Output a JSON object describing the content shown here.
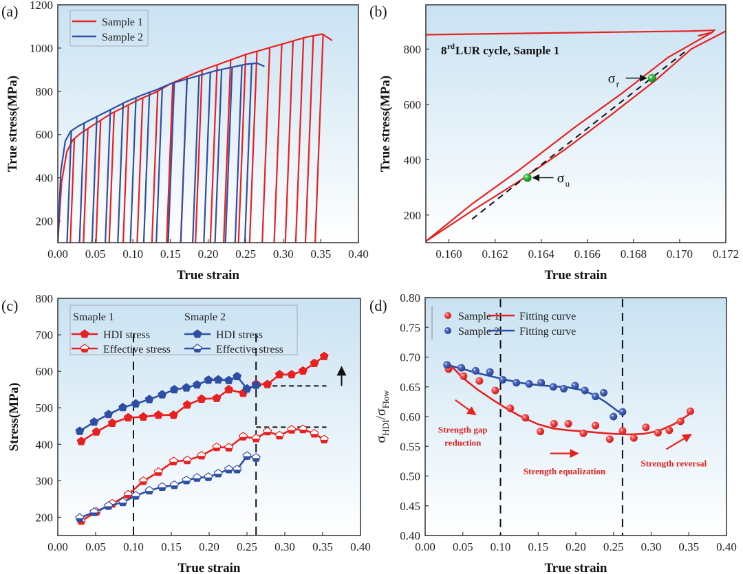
{
  "figure": {
    "colors": {
      "red": "#e8201f",
      "blue": "#2e4ea3",
      "green": "#1f9a2a",
      "bg_top": "#cfe4f2",
      "bg_bottom": "#ffffff",
      "black": "#111111"
    }
  },
  "chart_data": [
    {
      "id": "a",
      "panel_label": "(a)",
      "type": "line",
      "title": "",
      "xlabel": "True strain",
      "ylabel": "True stress(MPa)",
      "xlim": [
        0.0,
        0.4
      ],
      "ylim": [
        100,
        1200
      ],
      "xticks": [
        0.0,
        0.05,
        0.1,
        0.15,
        0.2,
        0.25,
        0.3,
        0.35,
        0.4
      ],
      "xtick_labels": [
        "0.00",
        "0.05",
        "0.10",
        "0.15",
        "0.20",
        "0.25",
        "0.30",
        "0.35",
        "0.40"
      ],
      "yticks": [
        200,
        400,
        600,
        800,
        1000,
        1200
      ],
      "ytick_labels": [
        "200",
        "400",
        "600",
        "800",
        "1000",
        "1200"
      ],
      "legend": {
        "position": "top-left",
        "entries": [
          "Sample 1",
          "Sample 2"
        ]
      },
      "series": [
        {
          "name": "Sample 1",
          "color": "red",
          "envelope": [
            [
              0.0,
              100
            ],
            [
              0.005,
              380
            ],
            [
              0.012,
              520
            ],
            [
              0.02,
              575
            ],
            [
              0.03,
              605
            ],
            [
              0.05,
              650
            ],
            [
              0.07,
              695
            ],
            [
              0.09,
              730
            ],
            [
              0.11,
              765
            ],
            [
              0.13,
              795
            ],
            [
              0.15,
              835
            ],
            [
              0.17,
              865
            ],
            [
              0.19,
              895
            ],
            [
              0.21,
              920
            ],
            [
              0.23,
              945
            ],
            [
              0.25,
              970
            ],
            [
              0.27,
              990
            ],
            [
              0.29,
              1010
            ],
            [
              0.31,
              1030
            ],
            [
              0.33,
              1050
            ],
            [
              0.352,
              1065
            ],
            [
              0.365,
              1035
            ]
          ],
          "unload_strains": [
            0.022,
            0.04,
            0.057,
            0.075,
            0.094,
            0.113,
            0.133,
            0.153,
            0.172,
            0.192,
            0.212,
            0.23,
            0.25,
            0.265,
            0.282,
            0.298,
            0.313,
            0.327,
            0.34,
            0.353
          ],
          "unload_modulus_strain": 0.011
        },
        {
          "name": "Sample 2",
          "color": "blue",
          "envelope": [
            [
              0.0,
              100
            ],
            [
              0.004,
              430
            ],
            [
              0.01,
              570
            ],
            [
              0.017,
              615
            ],
            [
              0.028,
              640
            ],
            [
              0.05,
              680
            ],
            [
              0.07,
              715
            ],
            [
              0.09,
              750
            ],
            [
              0.11,
              780
            ],
            [
              0.13,
              805
            ],
            [
              0.15,
              835
            ],
            [
              0.17,
              855
            ],
            [
              0.19,
              875
            ],
            [
              0.21,
              895
            ],
            [
              0.23,
              910
            ],
            [
              0.25,
              925
            ],
            [
              0.265,
              930
            ],
            [
              0.275,
              915
            ]
          ],
          "unload_strains": [
            0.018,
            0.035,
            0.052,
            0.07,
            0.087,
            0.104,
            0.122,
            0.139,
            0.155,
            0.172,
            0.188,
            0.203,
            0.218,
            0.232,
            0.245,
            0.258
          ],
          "unload_modulus_strain": 0.011
        }
      ]
    },
    {
      "id": "b",
      "panel_label": "(b)",
      "type": "line",
      "title": "",
      "annotation": {
        "prefix": "8",
        "superscript": "rd",
        "text": " LUR cycle, Sample 1"
      },
      "xlabel": "True strain",
      "ylabel": "True stress(MPa)",
      "xlim": [
        0.159,
        0.172
      ],
      "ylim": [
        100,
        960
      ],
      "xticks": [
        0.16,
        0.162,
        0.164,
        0.166,
        0.168,
        0.17,
        0.172
      ],
      "xtick_labels": [
        "0.160",
        "0.162",
        "0.164",
        "0.166",
        "0.168",
        "0.170",
        "0.172"
      ],
      "yticks": [
        200,
        400,
        600,
        800
      ],
      "ytick_labels": [
        "200",
        "400",
        "600",
        "800"
      ],
      "series": [
        {
          "name": "top-branch",
          "color": "red",
          "points": [
            [
              0.159,
              852
            ],
            [
              0.1705,
              865
            ],
            [
              0.1715,
              868
            ],
            [
              0.1714,
              860
            ],
            [
              0.1708,
              848
            ]
          ]
        },
        {
          "name": "unloading",
          "color": "red",
          "points": [
            [
              0.1714,
              860
            ],
            [
              0.1695,
              770
            ],
            [
              0.1675,
              640
            ],
            [
              0.1655,
              520
            ],
            [
              0.163,
              360
            ],
            [
              0.161,
              240
            ],
            [
              0.159,
              105
            ]
          ]
        },
        {
          "name": "reloading",
          "color": "red",
          "points": [
            [
              0.159,
              105
            ],
            [
              0.161,
              215
            ],
            [
              0.163,
              320
            ],
            [
              0.165,
              435
            ],
            [
              0.167,
              560
            ],
            [
              0.169,
              690
            ],
            [
              0.1705,
              800
            ],
            [
              0.172,
              865
            ]
          ]
        },
        {
          "name": "linear-fit",
          "color": "black",
          "dashed": true,
          "points": [
            [
              0.161,
              185
            ],
            [
              0.1703,
              795
            ]
          ]
        }
      ],
      "markers": [
        {
          "label": "σ",
          "sub": "r",
          "x": 0.1688,
          "y": 695,
          "arrow_from": "left"
        },
        {
          "label": "σ",
          "sub": "u",
          "x": 0.1634,
          "y": 335,
          "arrow_from": "right"
        }
      ]
    },
    {
      "id": "c",
      "panel_label": "(c)",
      "type": "line",
      "title": "",
      "xlabel": "True strain",
      "ylabel": "Stress(MPa)",
      "xlim": [
        0.0,
        0.4
      ],
      "ylim": [
        150,
        800
      ],
      "xticks": [
        0.0,
        0.05,
        0.1,
        0.15,
        0.2,
        0.25,
        0.3,
        0.35,
        0.4
      ],
      "xtick_labels": [
        "0.00",
        "0.05",
        "0.10",
        "0.15",
        "0.20",
        "0.25",
        "0.30",
        "0.35",
        "0.40"
      ],
      "yticks": [
        200,
        300,
        400,
        500,
        600,
        700,
        800
      ],
      "ytick_labels": [
        "200",
        "300",
        "400",
        "500",
        "600",
        "700",
        "800"
      ],
      "legend": {
        "position": "top-left",
        "group1": "Smaple 1",
        "group2": "Smaple 2",
        "entries": [
          "HDI stress",
          "Effective stress",
          "HDI stress",
          "Effective stress"
        ]
      },
      "vlines": [
        0.1,
        0.262
      ],
      "hlines": [
        {
          "y": 560,
          "x0": 0.262,
          "x1": 0.355
        },
        {
          "y": 447,
          "x0": 0.262,
          "x1": 0.355
        }
      ],
      "up_arrow": {
        "x": 0.375,
        "y0": 560,
        "y1": 612
      },
      "series": [
        {
          "name": "Sample 1 HDI stress",
          "color": "red",
          "marker": "filled",
          "x": [
            0.031,
            0.051,
            0.072,
            0.093,
            0.113,
            0.133,
            0.153,
            0.171,
            0.19,
            0.21,
            0.226,
            0.245,
            0.262,
            0.277,
            0.293,
            0.309,
            0.324,
            0.339,
            0.352
          ],
          "y": [
            408,
            434,
            458,
            473,
            475,
            480,
            480,
            508,
            524,
            526,
            550,
            540,
            565,
            564,
            591,
            591,
            601,
            622,
            641
          ]
        },
        {
          "name": "Sample 1 Effective stress",
          "color": "red",
          "marker": "half",
          "x": [
            0.031,
            0.051,
            0.072,
            0.093,
            0.113,
            0.133,
            0.153,
            0.171,
            0.19,
            0.21,
            0.226,
            0.245,
            0.262,
            0.277,
            0.293,
            0.309,
            0.324,
            0.339,
            0.352
          ],
          "y": [
            190,
            215,
            237,
            262,
            299,
            324,
            353,
            356,
            369,
            392,
            391,
            421,
            416,
            435,
            424,
            440,
            441,
            429,
            413
          ]
        },
        {
          "name": "Sample 2 HDI stress",
          "color": "blue",
          "marker": "filled",
          "x": [
            0.029,
            0.048,
            0.067,
            0.086,
            0.103,
            0.121,
            0.138,
            0.154,
            0.17,
            0.184,
            0.199,
            0.212,
            0.226,
            0.237,
            0.25,
            0.262
          ],
          "y": [
            436,
            461,
            482,
            501,
            511,
            523,
            536,
            550,
            555,
            563,
            576,
            577,
            575,
            586,
            552,
            562
          ]
        },
        {
          "name": "Sample 2 Effective stress",
          "color": "blue",
          "marker": "half",
          "x": [
            0.029,
            0.048,
            0.067,
            0.086,
            0.103,
            0.121,
            0.138,
            0.154,
            0.17,
            0.184,
            0.199,
            0.212,
            0.226,
            0.237,
            0.25,
            0.262
          ],
          "y": [
            198,
            214,
            231,
            241,
            259,
            273,
            283,
            288,
            301,
            308,
            310,
            320,
            331,
            331,
            368,
            363
          ]
        }
      ]
    },
    {
      "id": "d",
      "panel_label": "(d)",
      "type": "scatter",
      "title": "",
      "xlabel": "True strain",
      "ylabel": {
        "main": "σ",
        "sub1": "HDI",
        "slash": "/σ",
        "sub2": "Flow"
      },
      "xlim": [
        0.0,
        0.4
      ],
      "ylim": [
        0.4,
        0.8
      ],
      "xticks": [
        0.0,
        0.05,
        0.1,
        0.15,
        0.2,
        0.25,
        0.3,
        0.35,
        0.4
      ],
      "xtick_labels": [
        "0.00",
        "0.05",
        "0.10",
        "0.15",
        "0.20",
        "0.25",
        "0.30",
        "0.35",
        "0.40"
      ],
      "yticks": [
        0.4,
        0.45,
        0.5,
        0.55,
        0.6,
        0.65,
        0.7,
        0.75,
        0.8
      ],
      "ytick_labels": [
        "0.40",
        "0.45",
        "0.50",
        "0.55",
        "0.60",
        "0.65",
        "0.70",
        "0.75",
        "0.80"
      ],
      "legend": {
        "position": "top-left",
        "entries": [
          "Sample 1",
          "Sample 2",
          "Fitting curve",
          "Fitting curve"
        ]
      },
      "vlines": [
        0.1,
        0.262
      ],
      "annotations": [
        {
          "text": "Strength gap",
          "x": 0.05,
          "y": 0.573
        },
        {
          "text": "reduction",
          "x": 0.05,
          "y": 0.551
        },
        {
          "text": "Strength equalization",
          "x": 0.185,
          "y": 0.503
        },
        {
          "text": "Strength reversal",
          "x": 0.33,
          "y": 0.516
        }
      ],
      "arrows": [
        {
          "from": [
            0.04,
            0.628
          ],
          "to": [
            0.067,
            0.603
          ]
        },
        {
          "from": [
            0.166,
            0.538
          ],
          "to": [
            0.203,
            0.538
          ]
        },
        {
          "from": [
            0.32,
            0.545
          ],
          "to": [
            0.353,
            0.57
          ]
        }
      ],
      "series": [
        {
          "name": "Sample 1",
          "color": "red",
          "kind": "points",
          "x": [
            0.031,
            0.051,
            0.072,
            0.093,
            0.113,
            0.133,
            0.153,
            0.171,
            0.19,
            0.21,
            0.226,
            0.245,
            0.262,
            0.277,
            0.293,
            0.309,
            0.324,
            0.339,
            0.352
          ],
          "y": [
            0.68,
            0.668,
            0.66,
            0.644,
            0.614,
            0.598,
            0.575,
            0.588,
            0.588,
            0.572,
            0.585,
            0.562,
            0.576,
            0.564,
            0.582,
            0.573,
            0.577,
            0.592,
            0.609
          ]
        },
        {
          "name": "Sample 2",
          "color": "blue",
          "kind": "points",
          "x": [
            0.029,
            0.048,
            0.067,
            0.086,
            0.103,
            0.121,
            0.138,
            0.154,
            0.17,
            0.184,
            0.199,
            0.212,
            0.226,
            0.237,
            0.25,
            0.262
          ],
          "y": [
            0.687,
            0.682,
            0.677,
            0.675,
            0.662,
            0.657,
            0.655,
            0.657,
            0.65,
            0.647,
            0.652,
            0.644,
            0.634,
            0.64,
            0.6,
            0.608
          ]
        },
        {
          "name": "Fitting curve (Sample 1)",
          "color": "red",
          "kind": "line",
          "x": [
            0.031,
            0.05,
            0.07,
            0.09,
            0.11,
            0.13,
            0.15,
            0.17,
            0.19,
            0.21,
            0.23,
            0.25,
            0.27,
            0.29,
            0.31,
            0.33,
            0.352
          ],
          "y": [
            0.69,
            0.665,
            0.645,
            0.628,
            0.612,
            0.598,
            0.587,
            0.58,
            0.577,
            0.575,
            0.573,
            0.571,
            0.57,
            0.571,
            0.576,
            0.587,
            0.605
          ]
        },
        {
          "name": "Fitting curve (Sample 2)",
          "color": "blue",
          "kind": "line",
          "x": [
            0.029,
            0.05,
            0.07,
            0.09,
            0.11,
            0.13,
            0.15,
            0.17,
            0.19,
            0.21,
            0.225,
            0.24,
            0.262
          ],
          "y": [
            0.687,
            0.68,
            0.673,
            0.667,
            0.661,
            0.656,
            0.653,
            0.651,
            0.649,
            0.644,
            0.636,
            0.624,
            0.603
          ]
        }
      ]
    }
  ]
}
